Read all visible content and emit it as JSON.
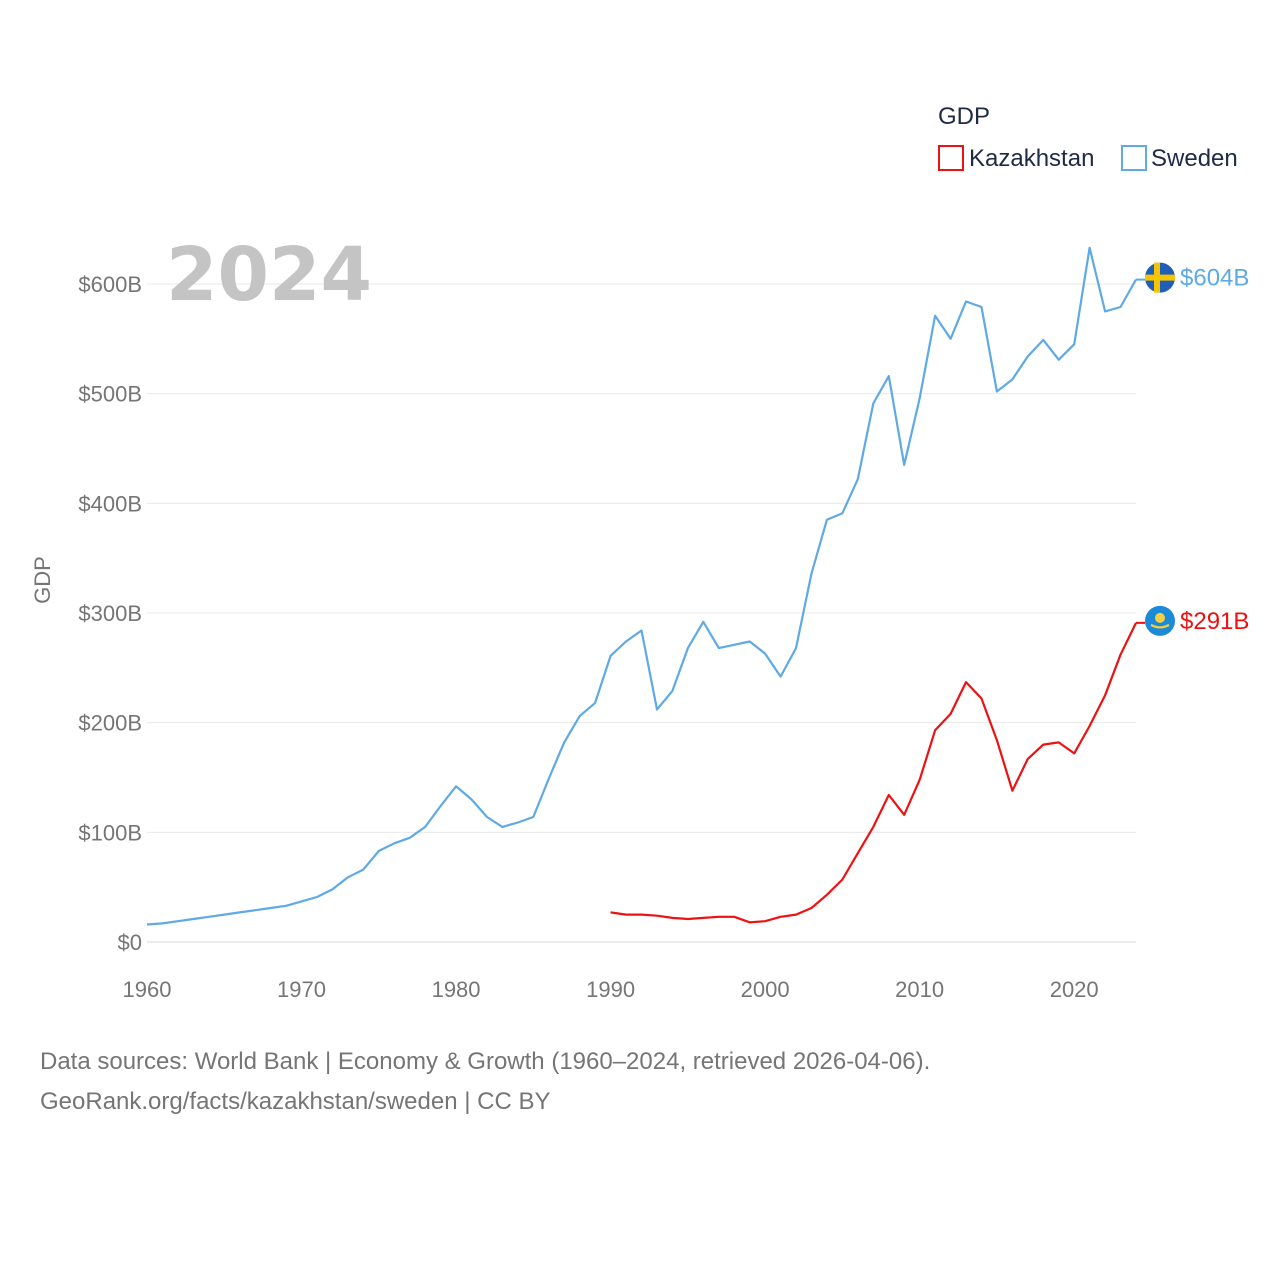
{
  "chart_data": {
    "type": "line",
    "legend_title": "GDP",
    "ylabel": "GDP",
    "xlabel": "",
    "current_year_label": "2024",
    "xlim": [
      1960,
      2024
    ],
    "ylim": [
      0,
      600
    ],
    "x_ticks": [
      1960,
      1970,
      1980,
      1990,
      2000,
      2010,
      2020
    ],
    "y_ticks": [
      {
        "value": 0,
        "label": "$0"
      },
      {
        "value": 100,
        "label": "$100B"
      },
      {
        "value": 200,
        "label": "$200B"
      },
      {
        "value": 300,
        "label": "$300B"
      },
      {
        "value": 400,
        "label": "$400B"
      },
      {
        "value": 500,
        "label": "$500B"
      },
      {
        "value": 600,
        "label": "$600B"
      }
    ],
    "unit": "billion USD",
    "series": [
      {
        "name": "Kazakhstan",
        "color": "#ee1111",
        "end_label": "$291B",
        "flag": "kazakhstan-flag",
        "x": [
          1990,
          1991,
          1992,
          1993,
          1994,
          1995,
          1996,
          1997,
          1998,
          1999,
          2000,
          2001,
          2002,
          2003,
          2004,
          2005,
          2006,
          2007,
          2008,
          2009,
          2010,
          2011,
          2012,
          2013,
          2014,
          2015,
          2016,
          2017,
          2018,
          2019,
          2020,
          2021,
          2022,
          2023,
          2024
        ],
        "values": [
          27,
          25,
          25,
          24,
          22,
          21,
          22,
          23,
          23,
          18,
          19,
          23,
          25,
          31,
          43,
          57,
          81,
          105,
          134,
          116,
          148,
          193,
          208,
          237,
          222,
          184,
          138,
          167,
          180,
          182,
          172,
          197,
          225,
          262,
          291
        ]
      },
      {
        "name": "Sweden",
        "color": "#5ea9e6",
        "end_label": "$604B",
        "flag": "sweden-flag",
        "x": [
          1960,
          1961,
          1962,
          1963,
          1964,
          1965,
          1966,
          1967,
          1968,
          1969,
          1970,
          1971,
          1972,
          1973,
          1974,
          1975,
          1976,
          1977,
          1978,
          1979,
          1980,
          1981,
          1982,
          1983,
          1984,
          1985,
          1986,
          1987,
          1988,
          1989,
          1990,
          1991,
          1992,
          1993,
          1994,
          1995,
          1996,
          1997,
          1998,
          1999,
          2000,
          2001,
          2002,
          2003,
          2004,
          2005,
          2006,
          2007,
          2008,
          2009,
          2010,
          2011,
          2012,
          2013,
          2014,
          2015,
          2016,
          2017,
          2018,
          2019,
          2020,
          2021,
          2022,
          2023,
          2024
        ],
        "values": [
          16,
          17,
          19,
          21,
          23,
          25,
          27,
          29,
          31,
          33,
          37,
          41,
          48,
          59,
          66,
          83,
          90,
          95,
          105,
          124,
          142,
          130,
          114,
          105,
          109,
          114,
          149,
          182,
          206,
          218,
          261,
          274,
          284,
          212,
          229,
          268,
          292,
          268,
          271,
          274,
          263,
          242,
          268,
          336,
          385,
          391,
          422,
          491,
          516,
          435,
          496,
          571,
          550,
          584,
          579,
          502,
          513,
          534,
          549,
          531,
          545,
          633,
          575,
          579,
          604
        ]
      }
    ]
  },
  "footer": {
    "line1": "Data sources: World Bank | Economy & Growth (1960–2024, retrieved 2026-04-06).",
    "line2": "GeoRank.org/facts/kazakhstan/sweden | CC BY"
  }
}
